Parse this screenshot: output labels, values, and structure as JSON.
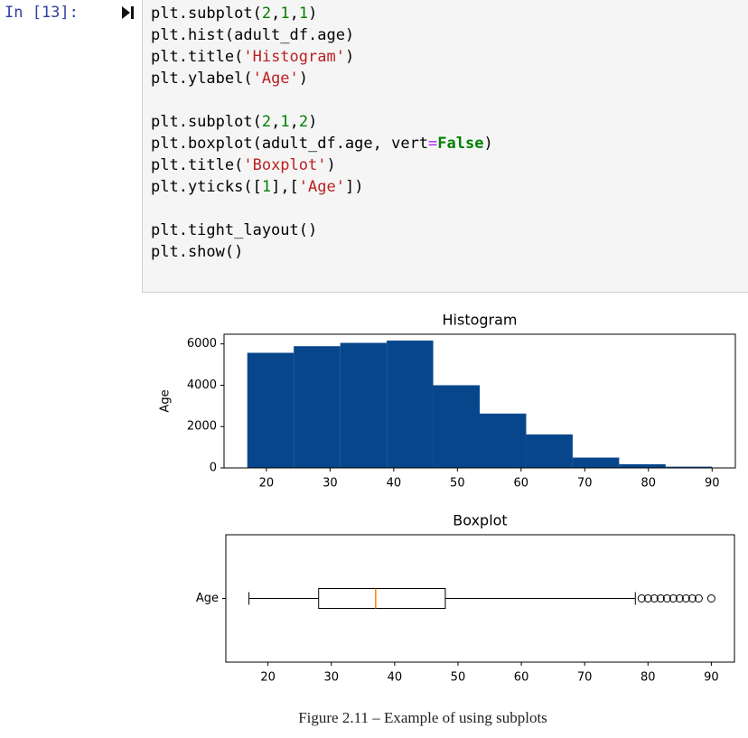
{
  "cell": {
    "prompt": "In [13]:",
    "code_blocks": [
      [
        [
          {
            "text": "plt.subplot("
          },
          {
            "text": "2",
            "color": "#008000"
          },
          {
            "text": ","
          },
          {
            "text": "1",
            "color": "#008000"
          },
          {
            "text": ","
          },
          {
            "text": "1",
            "color": "#008000"
          },
          {
            "text": ")"
          }
        ],
        [
          {
            "text": "plt.hist(adult_df.age)"
          }
        ],
        [
          {
            "text": "plt.title("
          },
          {
            "text": "'Histogram'",
            "color": "#ba2121"
          },
          {
            "text": ")"
          }
        ],
        [
          {
            "text": "plt.ylabel("
          },
          {
            "text": "'Age'",
            "color": "#ba2121"
          },
          {
            "text": ")"
          }
        ]
      ],
      [
        [
          {
            "text": "plt.subplot("
          },
          {
            "text": "2",
            "color": "#008000"
          },
          {
            "text": ","
          },
          {
            "text": "1",
            "color": "#008000"
          },
          {
            "text": ","
          },
          {
            "text": "2",
            "color": "#008000"
          },
          {
            "text": ")"
          }
        ],
        [
          {
            "text": "plt.boxplot(adult_df.age, vert"
          },
          {
            "text": "=",
            "color": "#aa22ff"
          },
          {
            "text": "False",
            "color": "#008000",
            "bold": true
          },
          {
            "text": ")"
          }
        ],
        [
          {
            "text": "plt.title("
          },
          {
            "text": "'Boxplot'",
            "color": "#ba2121"
          },
          {
            "text": ")"
          }
        ],
        [
          {
            "text": "plt.yticks(["
          },
          {
            "text": "1",
            "color": "#008000"
          },
          {
            "text": "],["
          },
          {
            "text": "'Age'",
            "color": "#ba2121"
          },
          {
            "text": "])"
          }
        ]
      ],
      [
        [
          {
            "text": "plt.tight_layout()"
          }
        ],
        [
          {
            "text": "plt.show()"
          }
        ]
      ]
    ]
  },
  "chart_data": [
    {
      "type": "histogram",
      "title": "Histogram",
      "ylabel": "Age",
      "color": "#08468c",
      "bins": [
        17,
        24.3,
        31.6,
        38.9,
        46.2,
        53.5,
        60.8,
        68.1,
        75.4,
        82.7,
        90
      ],
      "values": [
        5570,
        5890,
        6050,
        6160,
        4000,
        2630,
        1620,
        500,
        180,
        60
      ],
      "xlim": [
        13.35,
        93.65
      ],
      "ylim": [
        0,
        6468
      ],
      "xticks": [
        20,
        30,
        40,
        50,
        60,
        70,
        80,
        90
      ],
      "yticks": [
        0,
        2000,
        4000,
        6000
      ]
    },
    {
      "type": "boxplot",
      "title": "Boxplot",
      "median_color": "#ff7f0e",
      "stats": {
        "whislo": 17,
        "q1": 28,
        "med": 37,
        "q3": 48,
        "whishi": 78,
        "fliers": [
          79,
          80,
          81,
          82,
          83,
          84,
          85,
          86,
          87,
          88,
          90
        ]
      },
      "xlim": [
        13.35,
        93.65
      ],
      "ylim": [
        0.5,
        1.5
      ],
      "xticks": [
        20,
        30,
        40,
        50,
        60,
        70,
        80,
        90
      ],
      "yticks": [
        {
          "value": 1,
          "label": "Age"
        }
      ]
    }
  ],
  "caption": "Figure 2.11 – Example of using subplots"
}
